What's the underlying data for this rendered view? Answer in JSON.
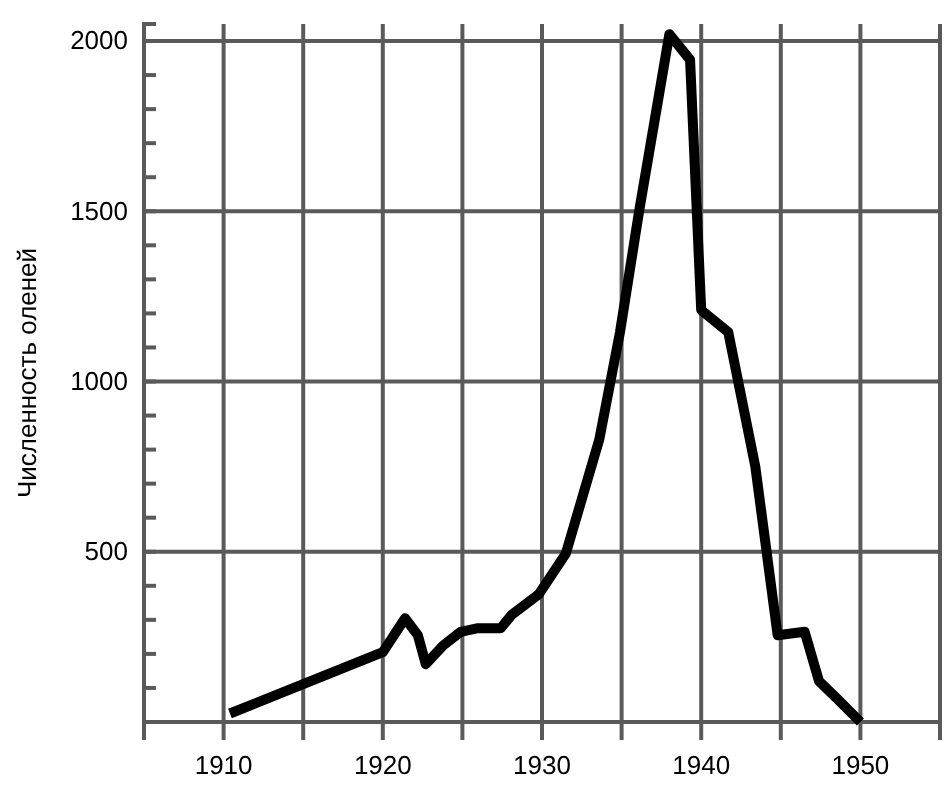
{
  "chart_data": {
    "type": "line",
    "ylabel": "Численность оленей",
    "x": [
      1910.4,
      1920,
      1921.4,
      1922.2,
      1922.7,
      1923.8,
      1924.9,
      1925.9,
      1927.4,
      1928.1,
      1929.8,
      1931.5,
      1933.6,
      1934.9,
      1936.1,
      1938,
      1939.3,
      1940,
      1941.7,
      1943.4,
      1944.8,
      1946.5,
      1947.4,
      1948.5,
      1950
    ],
    "series": [
      {
        "color": "#000000",
        "values": [
          25,
          205,
          305,
          255,
          170,
          225,
          265,
          275,
          275,
          315,
          375,
          495,
          830,
          1145,
          1500,
          2020,
          1945,
          1210,
          1145,
          750,
          255,
          265,
          120,
          70,
          0
        ]
      }
    ],
    "xlim": [
      1905,
      1955
    ],
    "ylim": [
      0,
      2050
    ],
    "xticks": [
      1910,
      {
        "value": 1915,
        "label": null
      },
      1920,
      {
        "value": 1925,
        "label": null
      },
      1930,
      {
        "value": 1935,
        "label": null
      },
      1940,
      {
        "value": 1945,
        "label": null
      },
      1950,
      {
        "value": 1955,
        "label": null
      }
    ],
    "yticks": [
      {
        "value": 100,
        "label": null
      },
      {
        "value": 200,
        "label": null
      },
      {
        "value": 300,
        "label": null
      },
      {
        "value": 400,
        "label": null
      },
      500,
      {
        "value": 600,
        "label": null
      },
      {
        "value": 700,
        "label": null
      },
      {
        "value": 800,
        "label": null
      },
      {
        "value": 900,
        "label": null
      },
      1000,
      {
        "value": 1100,
        "label": null
      },
      {
        "value": 1200,
        "label": null
      },
      {
        "value": 1300,
        "label": null
      },
      {
        "value": 1400,
        "label": null
      },
      1500,
      {
        "value": 1600,
        "label": null
      },
      {
        "value": 1700,
        "label": null
      },
      {
        "value": 1800,
        "label": null
      },
      {
        "value": 1900,
        "label": null
      },
      2000
    ],
    "grid": true,
    "marker": "none",
    "line_style": "solid"
  }
}
